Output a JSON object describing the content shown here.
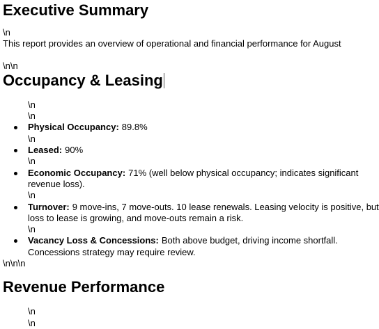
{
  "heading_1": "Executive Summary",
  "gap_1": "\\n",
  "paragraph": "This report provides an overview of operational and financial performance for August",
  "gap_2": "\\n\\n",
  "heading_2": "Occupancy & Leasing",
  "list_gap": [
    "\\n",
    "\\n"
  ],
  "items": [
    {
      "label": "Physical Occupancy:",
      "lines": [
        "89.8%"
      ],
      "after": "\\n"
    },
    {
      "label": "Leased:",
      "lines": [
        "90%"
      ],
      "after": "\\n"
    },
    {
      "label": "Economic Occupancy:",
      "lines": [
        "71% (well below physical occupancy; indicates significant",
        "revenue loss)."
      ],
      "after": "\\n"
    },
    {
      "label": "Turnover:",
      "lines": [
        "9 move-ins, 7 move-outs. 10 lease renewals. Leasing velocity is positive, but",
        "loss to lease is growing, and move-outs remain a risk."
      ],
      "after": "\\n"
    },
    {
      "label": "Vacancy Loss & Concessions:",
      "lines": [
        "Both above budget, driving income shortfall.",
        "Concessions strategy may require review."
      ]
    }
  ],
  "gap_3": "\\n\\n\\n",
  "heading_3": "Revenue Performance",
  "end_gap": [
    "\\n",
    "\\n"
  ]
}
